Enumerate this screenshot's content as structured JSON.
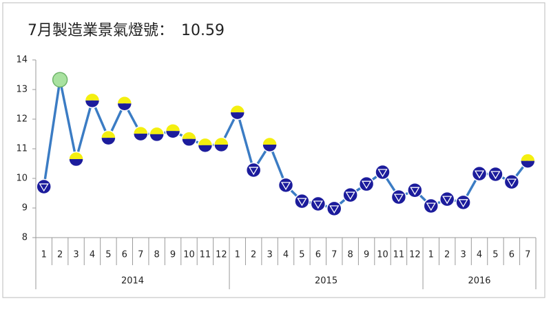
{
  "chart_data": {
    "type": "line",
    "title": "7月製造業景氣燈號：　10.59",
    "groups": [
      {
        "label": "2014",
        "categories": [
          "1",
          "2",
          "3",
          "4",
          "5",
          "6",
          "7",
          "8",
          "9",
          "10",
          "11",
          "12"
        ]
      },
      {
        "label": "2015",
        "categories": [
          "1",
          "2",
          "3",
          "4",
          "5",
          "6",
          "7",
          "8",
          "9",
          "10",
          "11",
          "12"
        ]
      },
      {
        "label": "2016",
        "categories": [
          "1",
          "2",
          "3",
          "4",
          "5",
          "6",
          "7"
        ]
      }
    ],
    "values": [
      9.72,
      13.33,
      10.65,
      12.63,
      11.37,
      12.53,
      11.51,
      11.49,
      11.6,
      11.33,
      11.12,
      11.14,
      12.23,
      10.28,
      11.14,
      9.77,
      9.23,
      9.14,
      8.98,
      9.44,
      9.81,
      10.21,
      9.37,
      9.6,
      9.07,
      9.3,
      9.19,
      10.16,
      10.14,
      9.88,
      10.59
    ],
    "point_styles": [
      "blue",
      "green",
      "yellow-blue",
      "yellow-blue",
      "yellow-blue",
      "yellow-blue",
      "yellow-blue",
      "yellow-blue",
      "yellow-blue",
      "yellow-blue",
      "yellow-blue",
      "yellow-blue",
      "yellow-blue",
      "blue",
      "yellow-blue",
      "blue",
      "blue",
      "blue",
      "blue",
      "blue",
      "blue",
      "blue",
      "blue",
      "blue",
      "blue",
      "blue",
      "blue",
      "blue",
      "blue",
      "blue",
      "yellow-blue"
    ],
    "color": "#3b7cc4",
    "ylim": [
      8,
      14
    ],
    "yticks": [
      8,
      9,
      10,
      11,
      12,
      13,
      14
    ]
  }
}
